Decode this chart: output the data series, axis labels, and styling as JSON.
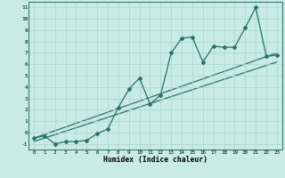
{
  "xlabel": "Humidex (Indice chaleur)",
  "ylabel": "",
  "bg_color": "#c8ebe3",
  "grid_color": "#b0d8ce",
  "line_color": "#2a7068",
  "data_x": [
    0,
    1,
    2,
    3,
    4,
    5,
    6,
    7,
    8,
    9,
    10,
    11,
    12,
    13,
    14,
    15,
    16,
    17,
    18,
    19,
    20,
    21,
    22,
    23
  ],
  "data_y": [
    -0.5,
    -0.3,
    -1.0,
    -0.8,
    -0.8,
    -0.7,
    -0.1,
    0.3,
    2.2,
    3.8,
    4.8,
    2.5,
    3.3,
    7.0,
    8.3,
    8.4,
    6.2,
    7.6,
    7.5,
    7.5,
    9.2,
    11.0,
    6.7,
    6.8
  ],
  "trend1_x": [
    0,
    23
  ],
  "trend1_y": [
    -0.5,
    7.0
  ],
  "trend2_x": [
    0,
    23
  ],
  "trend2_y": [
    -0.8,
    6.2
  ],
  "xlim": [
    -0.5,
    23.5
  ],
  "ylim": [
    -1.5,
    11.5
  ],
  "xticks": [
    0,
    1,
    2,
    3,
    4,
    5,
    6,
    7,
    8,
    9,
    10,
    11,
    12,
    13,
    14,
    15,
    16,
    17,
    18,
    19,
    20,
    21,
    22,
    23
  ],
  "yticks": [
    -1,
    0,
    1,
    2,
    3,
    4,
    5,
    6,
    7,
    8,
    9,
    10,
    11
  ]
}
